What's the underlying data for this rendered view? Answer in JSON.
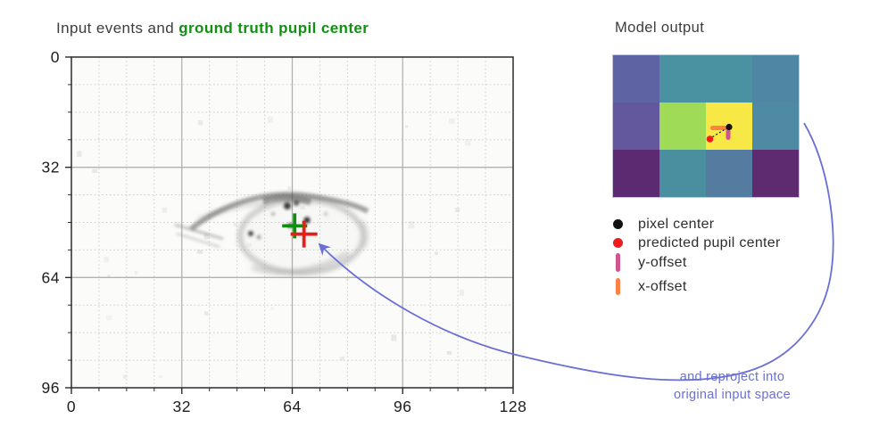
{
  "left_panel": {
    "title_prefix": "Input events and ",
    "title_highlight": "ground truth pupil center",
    "title_highlight_color": "#119111",
    "axes": {
      "x_range": [
        0,
        128
      ],
      "y_range": [
        0,
        96
      ],
      "x_ticks": [
        0,
        32,
        64,
        96,
        128
      ],
      "y_ticks": [
        0,
        32,
        64,
        96
      ],
      "minor_step": 8,
      "grid": "major solid, minor dotted"
    },
    "markers": {
      "ground_truth": {
        "x": 64.7,
        "y": 49.0,
        "color": "#0f8f0f",
        "shape": "cross"
      },
      "prediction": {
        "x": 67.4,
        "y": 51.4,
        "color": "#e61e14",
        "shape": "cross"
      }
    }
  },
  "right_panel": {
    "title": "Model output",
    "heatmap": {
      "rows": 3,
      "cols": 4,
      "cell_colors": [
        [
          "#5e63a4",
          "#4a92a2",
          "#4a92a2",
          "#4e86a3"
        ],
        [
          "#63579e",
          "#9fdb57",
          "#f7e845",
          "#4f8aa4"
        ],
        [
          "#5c2a70",
          "#4a8fa0",
          "#547ba0",
          "#5e2b71"
        ]
      ],
      "markers": {
        "x_offset_bar": {
          "x": 109,
          "y": 79,
          "w": 23,
          "h": 5,
          "color": "#fb8147"
        },
        "y_offset_bar": {
          "x": 126.5,
          "y": 83,
          "w": 5,
          "h": 12,
          "color": "#cf5590"
        },
        "offset_line": {
          "x1": 111.5,
          "y1": 91.5,
          "x2": 128,
          "y2": 81.5,
          "color": "#1a1a1a"
        },
        "pixel_center_dot": {
          "x": 130,
          "y": 80.5,
          "r": 3.6,
          "color": "#111111"
        },
        "predicted_dot": {
          "x": 108.5,
          "y": 94,
          "r": 3.8,
          "color": "#ee1c1c"
        }
      }
    },
    "legend": {
      "items": [
        {
          "id": "pixel-center",
          "marker": "dot",
          "color": "#111111",
          "label": "pixel center"
        },
        {
          "id": "predicted-pupil-center",
          "marker": "dot",
          "color": "#ee1c1c",
          "label": "predicted pupil center"
        },
        {
          "id": "y-offset",
          "marker": "bar",
          "color": "#cf5590",
          "label": "y-offset"
        },
        {
          "id": "x-offset",
          "marker": "bar",
          "color": "#fb8147",
          "label": "x-offset"
        }
      ]
    },
    "caption": {
      "lines": [
        "and reproject into",
        "original input space"
      ],
      "color": "#6a6fd4"
    },
    "arrow_color": "#6a6fd4"
  },
  "chart_data": [
    {
      "type": "scatter",
      "title": "Input events and ground truth pupil center",
      "xlabel": "",
      "ylabel": "",
      "xlim": [
        0,
        128
      ],
      "ylim": [
        96,
        0
      ],
      "x_ticks": [
        0,
        32,
        64,
        96,
        128
      ],
      "y_ticks": [
        0,
        32,
        64,
        96
      ],
      "grid": true,
      "background": "grayscale event-camera image of an eye, eye spans approx x 49-86, y 42-63",
      "series": [
        {
          "name": "ground truth pupil center",
          "marker": "cross",
          "color": "#0f8f0f",
          "points": [
            [
              64.7,
              49.0
            ]
          ]
        },
        {
          "name": "predicted pupil center",
          "marker": "cross",
          "color": "#e61e14",
          "points": [
            [
              67.4,
              51.4
            ]
          ]
        }
      ]
    },
    {
      "type": "heatmap",
      "title": "Model output",
      "rows": 3,
      "cols": 4,
      "cell_colors": [
        [
          "#5e63a4",
          "#4a92a2",
          "#4a92a2",
          "#4e86a3"
        ],
        [
          "#63579e",
          "#9fdb57",
          "#f7e845",
          "#4f8aa4"
        ],
        [
          "#5c2a70",
          "#4a8fa0",
          "#547ba0",
          "#5e2b71"
        ]
      ],
      "note": "peak activation in row 2 col 3 (yellow); pixel center, predicted pupil center, x-offset and y-offset drawn inside peak cell",
      "legend_position": "below",
      "legend": [
        "pixel center",
        "predicted pupil center",
        "y-offset",
        "x-offset"
      ]
    }
  ]
}
